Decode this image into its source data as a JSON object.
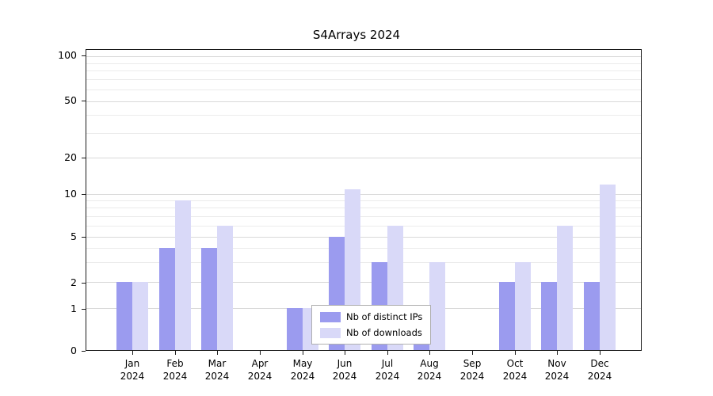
{
  "chart_data": {
    "type": "bar",
    "title": "S4Arrays 2024",
    "x_year": "2024",
    "categories": [
      "Jan",
      "Feb",
      "Mar",
      "Apr",
      "May",
      "Jun",
      "Jul",
      "Aug",
      "Sep",
      "Oct",
      "Nov",
      "Dec"
    ],
    "series": [
      {
        "name": "Nb of distinct IPs",
        "color": "#9b9bef",
        "values": [
          2,
          4,
          4,
          0,
          1,
          5,
          3,
          1,
          0,
          2,
          2,
          2
        ]
      },
      {
        "name": "Nb of downloads",
        "color": "#d9d9f8",
        "values": [
          2,
          9,
          6,
          0,
          1,
          11,
          6,
          3,
          0,
          3,
          6,
          12
        ]
      }
    ],
    "y_ticks": [
      0,
      1,
      2,
      5,
      10,
      20,
      50,
      100
    ],
    "y_minor_gridlines": [
      3,
      4,
      6,
      7,
      8,
      9,
      30,
      40,
      60,
      70,
      80,
      90
    ],
    "ylim": [
      0,
      100
    ],
    "y_scale": "log-like",
    "grid": true,
    "legend_position": "bottom-center",
    "legend": [
      "Nb of distinct IPs",
      "Nb of downloads"
    ]
  }
}
